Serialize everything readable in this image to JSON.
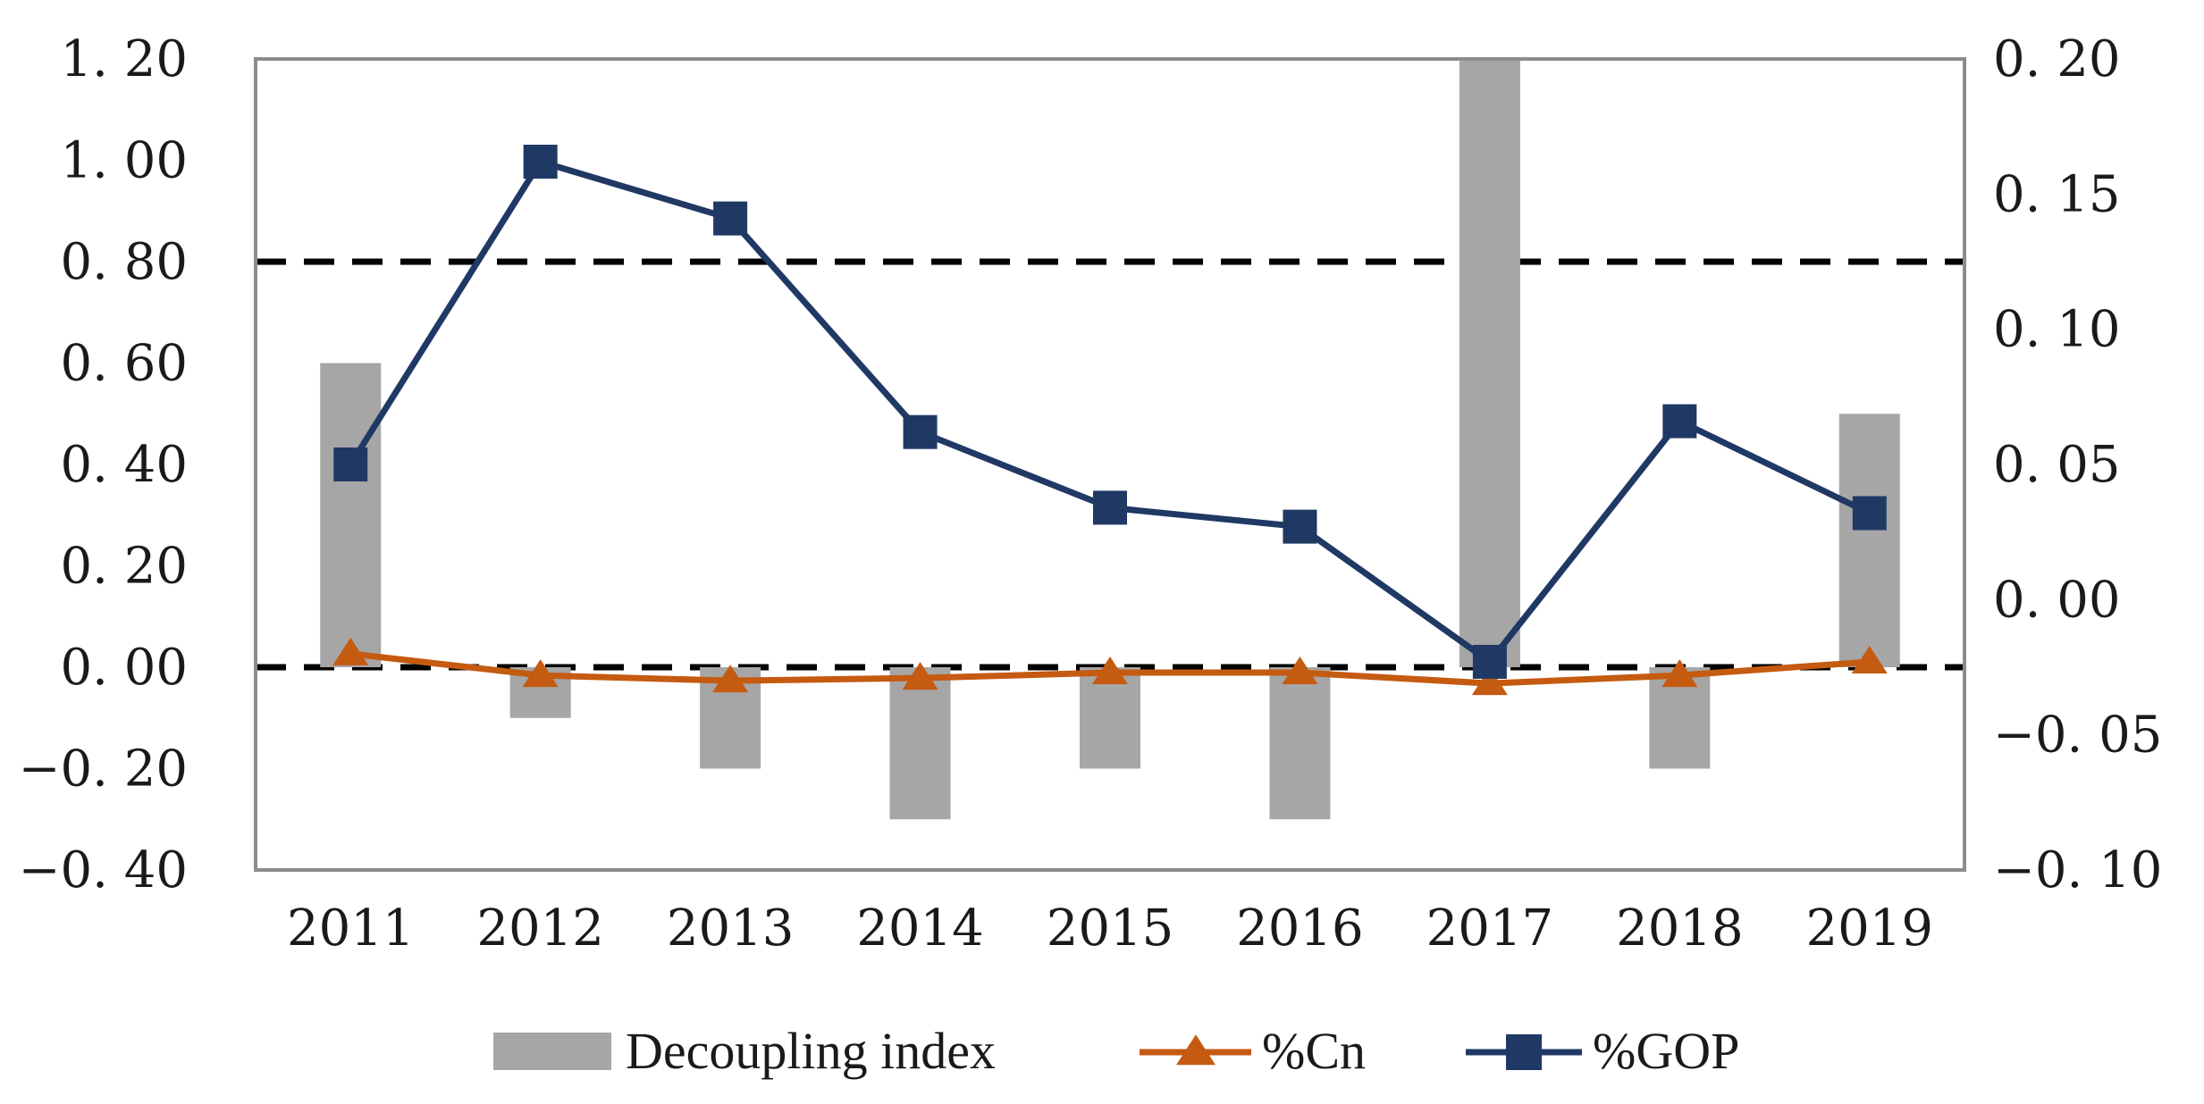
{
  "chart_data": {
    "type": "bar",
    "title": "",
    "xlabel": "",
    "ylabel": "",
    "categories": [
      "2011",
      "2012",
      "2013",
      "2014",
      "2015",
      "2016",
      "2017",
      "2018",
      "2019"
    ],
    "y_left": {
      "lim": [
        -0.4,
        1.2
      ],
      "ticks": [
        -0.4,
        -0.2,
        0.0,
        0.2,
        0.4,
        0.6,
        0.8,
        1.0,
        1.2
      ],
      "tick_labels": [
        "−0. 40",
        "−0. 20",
        "0. 00",
        "0. 20",
        "0. 40",
        "0. 60",
        "0. 80",
        "1. 00",
        "1. 20"
      ]
    },
    "y_right": {
      "lim": [
        -0.1,
        0.2
      ],
      "ticks": [
        -0.1,
        -0.05,
        0.0,
        0.05,
        0.1,
        0.15,
        0.2
      ],
      "tick_labels": [
        "−0. 10",
        "−0. 05",
        "0. 00",
        "0. 05",
        "0. 10",
        "0. 15",
        "0. 20"
      ]
    },
    "reference_lines": [
      0.8,
      0.0
    ],
    "series": [
      {
        "name": "Decoupling index",
        "kind": "bar",
        "axis": "left",
        "color": "#a6a6a6",
        "values": [
          0.6,
          -0.1,
          -0.2,
          -0.3,
          -0.2,
          -0.3,
          1.2,
          -0.2,
          0.5
        ]
      },
      {
        "name": "%Cn",
        "kind": "line",
        "marker": "triangle",
        "axis": "right",
        "color": "#c55a11",
        "values": [
          -0.02,
          -0.028,
          -0.03,
          -0.029,
          -0.027,
          -0.027,
          -0.031,
          -0.028,
          -0.023
        ]
      },
      {
        "name": "%GOP",
        "kind": "line",
        "marker": "square",
        "axis": "right",
        "color": "#203864",
        "values": [
          0.05,
          0.162,
          0.141,
          0.062,
          0.034,
          0.027,
          -0.023,
          0.066,
          0.032
        ]
      }
    ],
    "legend": {
      "position": "bottom",
      "entries": [
        "Decoupling index",
        "%Cn",
        "%GOP"
      ]
    }
  }
}
